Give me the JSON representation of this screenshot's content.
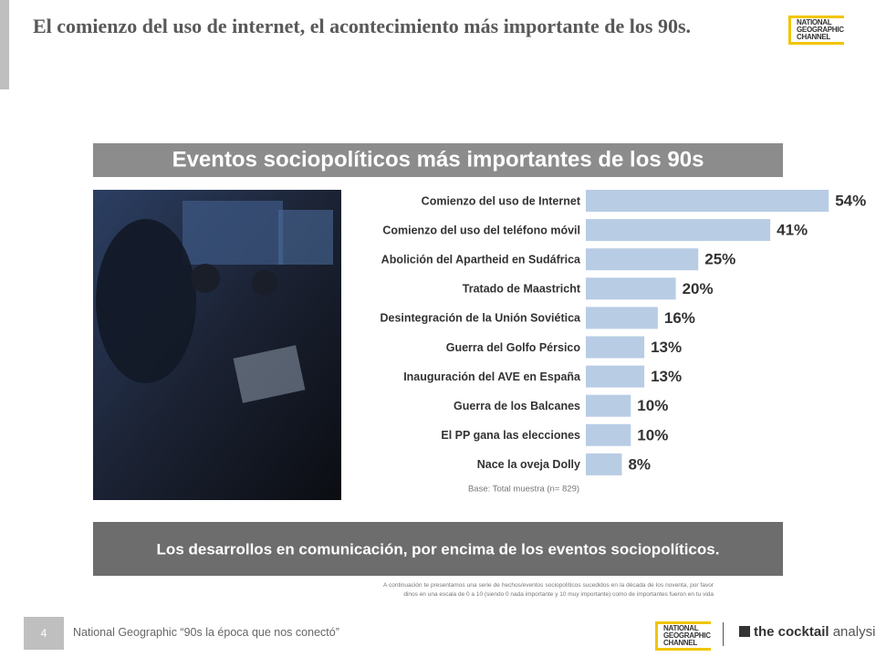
{
  "header": {
    "title": "El comienzo del uso de internet, el acontecimiento más importante de los 90s."
  },
  "logo": [
    "NATIONAL",
    "GEOGRAPHIC",
    "CHANNEL"
  ],
  "chart_data": {
    "type": "bar",
    "orientation": "horizontal",
    "title": "Eventos sociopolíticos más importantes de los 90s",
    "categories": [
      "Comienzo del uso de Internet",
      "Comienzo del uso del teléfono móvil",
      "Abolición del Apartheid en Sudáfrica",
      "Tratado de Maastricht",
      "Desintegración de la Unión Soviética",
      "Guerra del Golfo Pérsico",
      "Inauguración del AVE en España",
      "Guerra de los Balcanes",
      "El PP gana las elecciones",
      "Nace la oveja Dolly"
    ],
    "values": [
      54,
      41,
      25,
      20,
      16,
      13,
      13,
      10,
      10,
      8
    ],
    "value_labels": [
      "54%",
      "41%",
      "25%",
      "20%",
      "16%",
      "13%",
      "13%",
      "10%",
      "10%",
      "8%"
    ],
    "color": "#b8cce4",
    "note": "Base: Total muestra (n= 829)"
  },
  "banner": "Los desarrollos en comunicación, por encima de los eventos sociopolíticos.",
  "footnote": "A continuación te presentamos una serie de hechos/eventos sociopolíticos sucedidos en la década de los noventa, por favor dinos en una escala de 0 a 10 (siendo 0 nada importante y 10 muy importante) como de importantes fueron en tu vida",
  "footer": {
    "page": "4",
    "text": "National Geographic “90s la época que nos conectó”",
    "brand": [
      "the cocktail",
      "analysis"
    ]
  }
}
